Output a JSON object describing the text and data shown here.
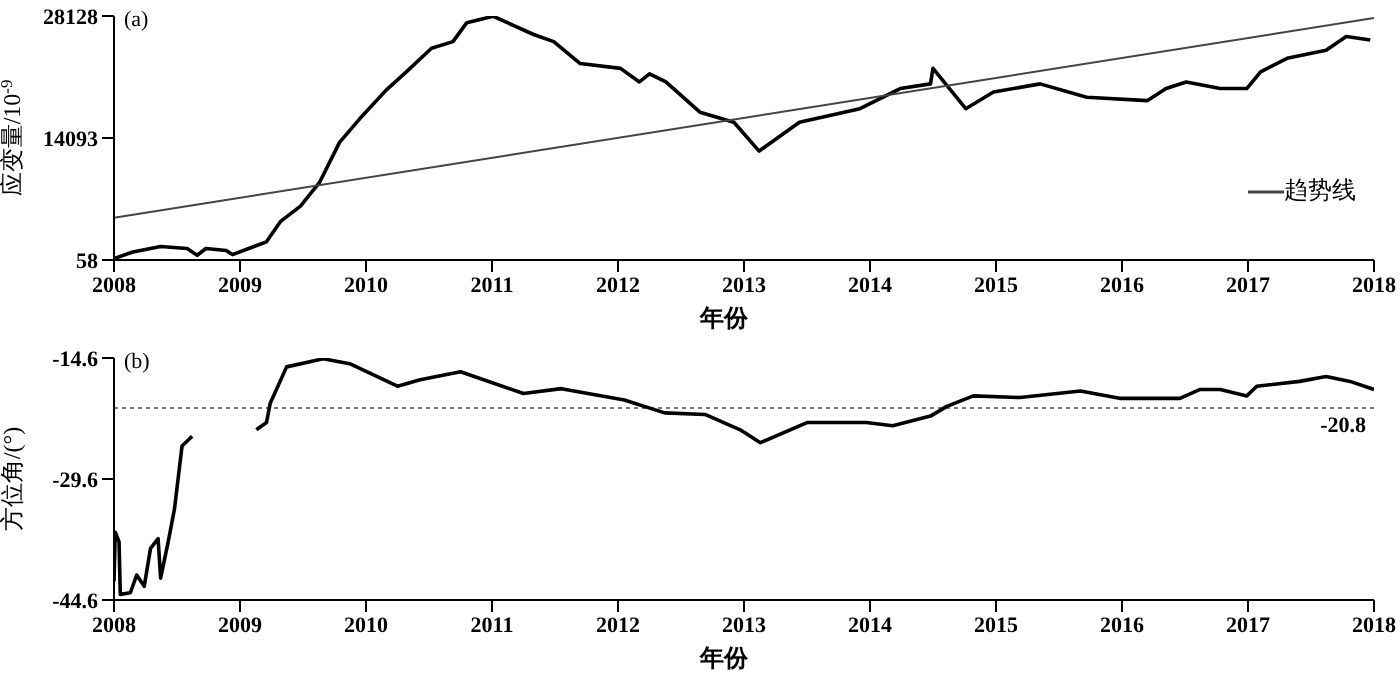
{
  "chart_data": [
    {
      "type": "line",
      "title": "(a)",
      "xlabel": "年份",
      "ylabel": "应变量/10$^{-9}$",
      "xlim": [
        2008,
        2018
      ],
      "xticks": [
        2008,
        2009,
        2010,
        2011,
        2012,
        2013,
        2014,
        2015,
        2016,
        2017,
        2018
      ],
      "ylim": [
        58,
        28128
      ],
      "yticks": [
        58,
        14093,
        28128
      ],
      "legend": "right",
      "series": [
        {
          "color": "#000000",
          "x": [
            2008.0,
            2008.15,
            2008.37,
            2008.58,
            2008.66,
            2008.73,
            2008.89,
            2008.94,
            2009.21,
            2009.32,
            2009.48,
            2009.63,
            2009.79,
            2009.95,
            2010.16,
            2010.32,
            2010.52,
            2010.69,
            2010.8,
            2011.01,
            2011.33,
            2011.49,
            2011.7,
            2012.02,
            2012.17,
            2012.25,
            2012.38,
            2012.65,
            2012.92,
            2013.12,
            2013.44,
            2013.92,
            2014.24,
            2014.48,
            2014.5,
            2014.76,
            2014.98,
            2015.35,
            2015.72,
            2016.2,
            2016.35,
            2016.51,
            2016.78,
            2016.99,
            2017.1,
            2017.31,
            2017.62,
            2017.78,
            2017.97
          ],
          "values": [
            220,
            986,
            1612,
            1380,
            600,
            1380,
            1150,
            680,
            2146,
            4466,
            6250,
            8950,
            13590,
            16300,
            19600,
            21700,
            24420,
            25180,
            27360,
            28100,
            26000,
            25180,
            22660,
            22100,
            20540,
            21480,
            20540,
            17060,
            15900,
            12590,
            15900,
            17460,
            19780,
            20320,
            22100,
            17460,
            19380,
            20320,
            18780,
            18390,
            19780,
            20540,
            19780,
            19780,
            21700,
            23260,
            24190,
            25760,
            25370
          ]
        },
        {
          "name": "趋势线",
          "color": "#444444",
          "x": [
            2008,
            2018
          ],
          "values": [
            4930,
            27900
          ]
        }
      ]
    },
    {
      "type": "line",
      "title": "(b)",
      "xlabel": "年份",
      "ylabel": "方位角/(°)",
      "xlim": [
        2008,
        2018
      ],
      "xticks": [
        2008,
        2009,
        2010,
        2011,
        2012,
        2013,
        2014,
        2015,
        2016,
        2017,
        2018
      ],
      "ylim": [
        -44.6,
        -14.6
      ],
      "yticks": [
        -44.6,
        -29.6,
        -14.6
      ],
      "ref_lines": [
        {
          "axis": "y",
          "value": -20.8,
          "label": "-20.8",
          "color": "#777777",
          "line_style": "dotted"
        }
      ],
      "series": [
        {
          "color": "#000000",
          "x": [
            2008.0,
            2008.01,
            2008.04,
            2008.05,
            2008.13,
            2008.18,
            2008.24,
            2008.29,
            2008.35,
            2008.37,
            2008.43,
            2008.48,
            2008.54,
            2008.62,
            2008.9,
            2009.13,
            2009.21,
            2009.24,
            2009.37,
            2009.66,
            2009.87,
            2010.25,
            2010.43,
            2010.75,
            2011.25,
            2011.55,
            2012.05,
            2012.37,
            2012.69,
            2012.97,
            2013.13,
            2013.5,
            2013.97,
            2014.18,
            2014.48,
            2014.61,
            2014.82,
            2015.19,
            2015.67,
            2015.98,
            2016.46,
            2016.62,
            2016.78,
            2016.99,
            2017.07,
            2017.41,
            2017.62,
            2017.81,
            2018.0
          ],
          "values": [
            -42.3,
            -36.2,
            -37.4,
            -43.9,
            -43.7,
            -41.5,
            -42.9,
            -38.2,
            -37.0,
            -41.9,
            -37.4,
            -33.3,
            -25.5,
            -24.3,
            null,
            -23.5,
            -22.6,
            -20.2,
            -15.7,
            -14.7,
            -15.3,
            -18.1,
            -17.3,
            -16.3,
            -19.0,
            -18.4,
            -19.8,
            -21.4,
            -21.6,
            -23.5,
            -25.1,
            -22.6,
            -22.6,
            -23.0,
            -21.8,
            -20.6,
            -19.3,
            -19.5,
            -18.7,
            -19.6,
            -19.6,
            -18.5,
            -18.5,
            -19.3,
            -18.1,
            -17.5,
            -16.9,
            -17.5,
            -18.5
          ]
        }
      ]
    }
  ]
}
